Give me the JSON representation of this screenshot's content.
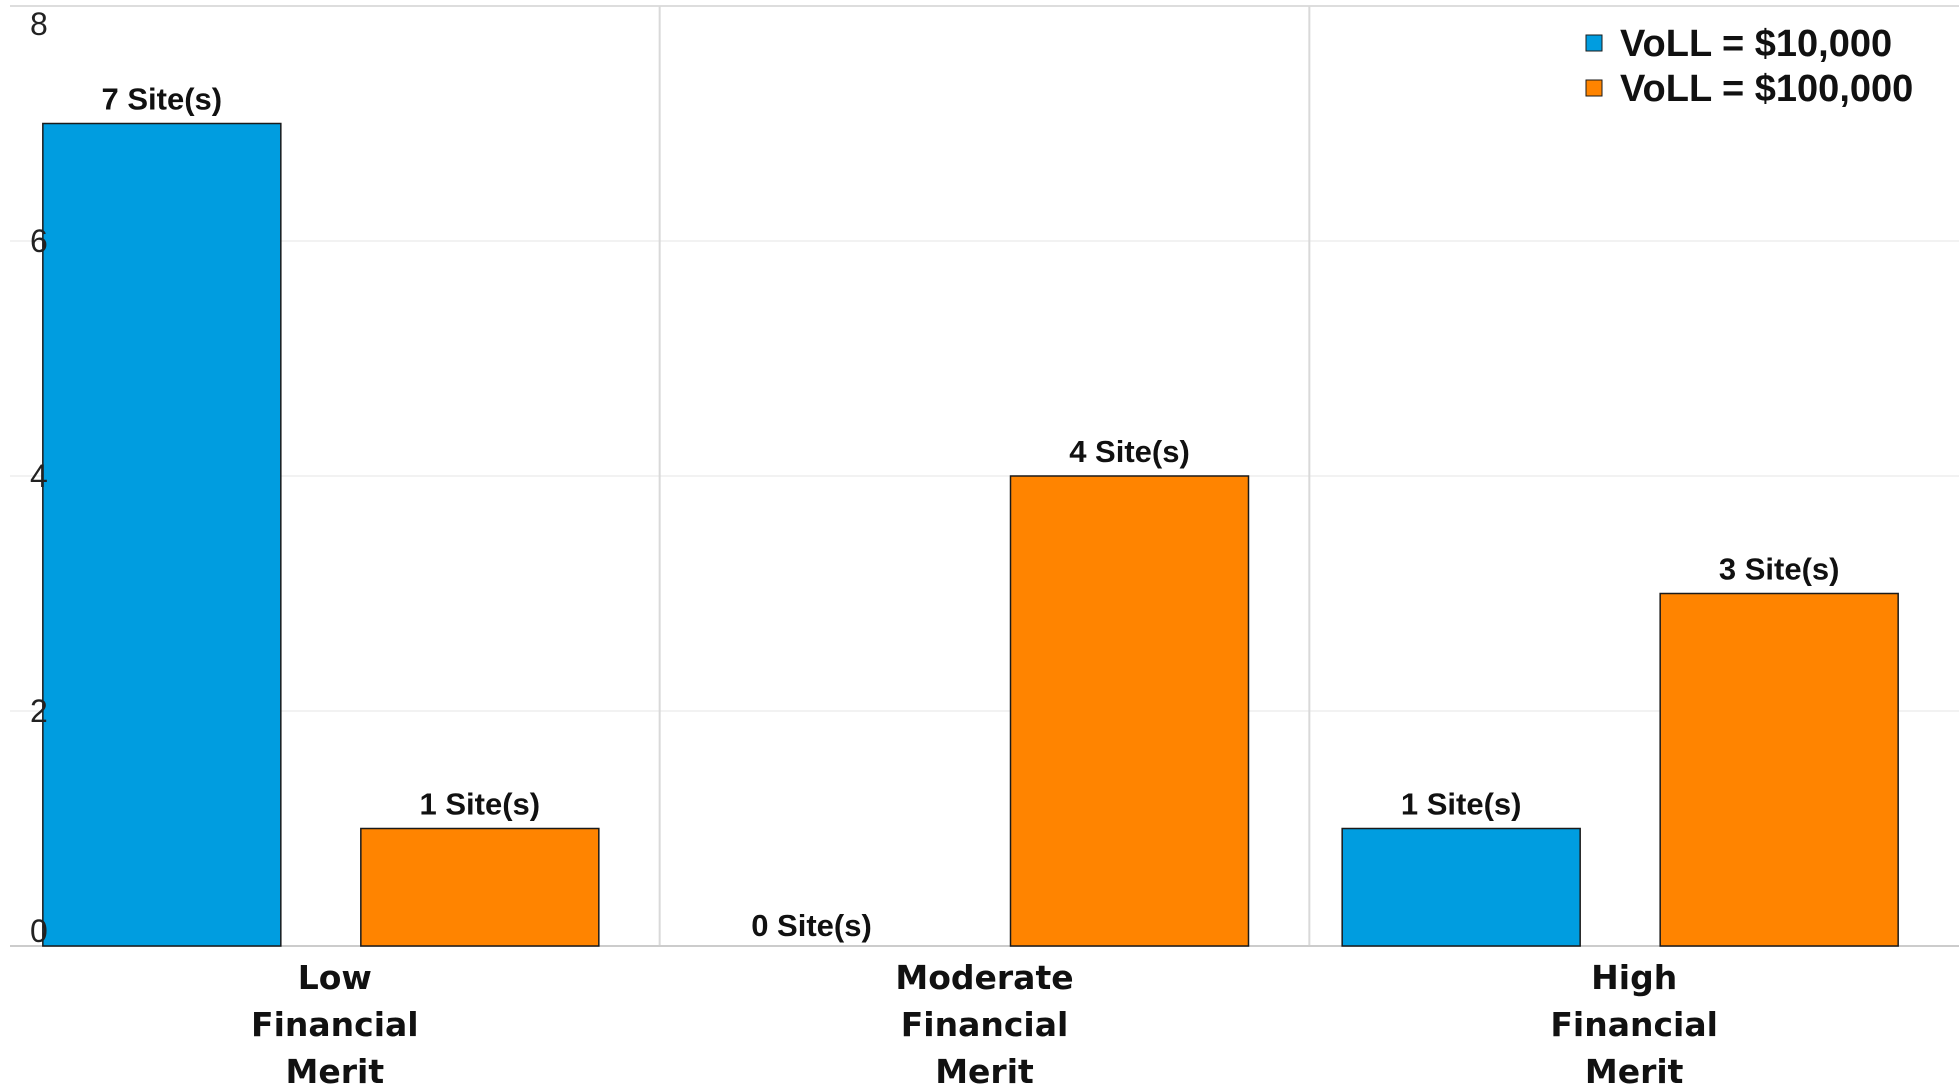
{
  "chart_data": {
    "type": "bar",
    "categories": [
      [
        "Low",
        "Financial",
        "Merit"
      ],
      [
        "Moderate",
        "Financial",
        "Merit"
      ],
      [
        "High",
        "Financial",
        "Merit"
      ]
    ],
    "series": [
      {
        "name": "VoLL = $10,000",
        "color": "#009de0",
        "values": [
          7,
          0,
          1
        ],
        "labels": [
          "7 Site(s)",
          "0 Site(s)",
          "1 Site(s)"
        ]
      },
      {
        "name": "VoLL = $100,000",
        "color": "#ff8400",
        "values": [
          1,
          4,
          3
        ],
        "labels": [
          "1 Site(s)",
          "4 Site(s)",
          "3 Site(s)"
        ]
      }
    ],
    "yticks": [
      "0",
      "2",
      "4",
      "6",
      "8"
    ],
    "ylim": [
      0,
      8
    ],
    "title": "",
    "xlabel": "",
    "ylabel": "",
    "grid": true,
    "legend_position": "top-right"
  }
}
